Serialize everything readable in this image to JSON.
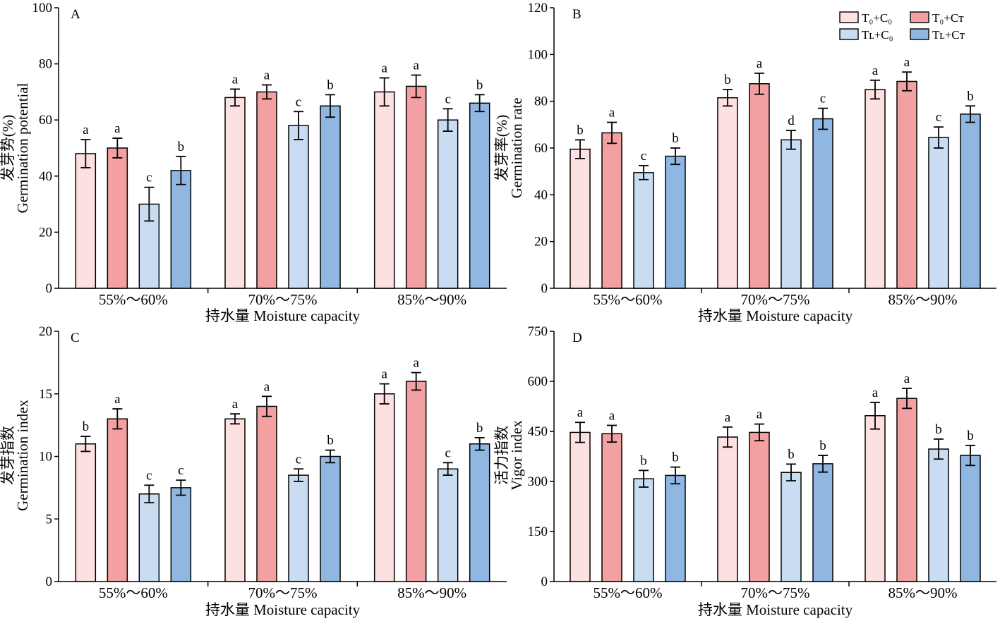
{
  "legend": [
    {
      "name": "T₀+C₀",
      "color": "#fde0e0"
    },
    {
      "name": "T₀+Cᴛ",
      "color": "#f2a0a2"
    },
    {
      "name": "Tʟ+C₀",
      "color": "#c9dcf2"
    },
    {
      "name": "Tʟ+Cᴛ",
      "color": "#8fb7e2"
    }
  ],
  "chart_data": [
    {
      "type": "bar",
      "panel": "A",
      "categories": [
        "55%～60%",
        "70%～75%",
        "85%～90%"
      ],
      "xlabel": "持水量 Moisture capacity",
      "ylabel_cn": "发芽势(%)",
      "ylabel_en": "Germination potential",
      "ylim": [
        0,
        100
      ],
      "yticks": [
        0,
        20,
        40,
        60,
        80,
        100
      ],
      "grid": false,
      "series": [
        {
          "name": "T₀+C₀",
          "values": [
            48,
            68,
            70
          ],
          "errors": [
            5,
            3,
            5
          ],
          "letters": [
            "a",
            "a",
            "a"
          ]
        },
        {
          "name": "T₀+Cᴛ",
          "values": [
            50,
            70,
            72
          ],
          "errors": [
            3.5,
            2.5,
            4
          ],
          "letters": [
            "a",
            "a",
            "a"
          ]
        },
        {
          "name": "Tʟ+C₀",
          "values": [
            30,
            58,
            60
          ],
          "errors": [
            6,
            5,
            4
          ],
          "letters": [
            "c",
            "c",
            "c"
          ]
        },
        {
          "name": "Tʟ+Cᴛ",
          "values": [
            42,
            65,
            66
          ],
          "errors": [
            5,
            4,
            3
          ],
          "letters": [
            "b",
            "b",
            "b"
          ]
        }
      ]
    },
    {
      "type": "bar",
      "panel": "B",
      "categories": [
        "55%～60%",
        "70%～75%",
        "85%～90%"
      ],
      "xlabel": "持水量 Moisture capacity",
      "ylabel_cn": "发芽率(%)",
      "ylabel_en": "Germination rate",
      "ylim": [
        0,
        120
      ],
      "yticks": [
        0,
        20,
        40,
        60,
        80,
        100,
        120
      ],
      "grid": false,
      "legend_position": "top-right",
      "series": [
        {
          "name": "T₀+C₀",
          "values": [
            59.5,
            81.5,
            85
          ],
          "errors": [
            4,
            3.5,
            4
          ],
          "letters": [
            "b",
            "b",
            "a"
          ]
        },
        {
          "name": "T₀+Cᴛ",
          "values": [
            66.5,
            87.5,
            88.5
          ],
          "errors": [
            4.5,
            4.5,
            4
          ],
          "letters": [
            "a",
            "a",
            "a"
          ]
        },
        {
          "name": "Tʟ+C₀",
          "values": [
            49.5,
            63.5,
            64.5
          ],
          "errors": [
            3,
            4,
            4.5
          ],
          "letters": [
            "c",
            "d",
            "c"
          ]
        },
        {
          "name": "Tʟ+Cᴛ",
          "values": [
            56.5,
            72.5,
            74.5
          ],
          "errors": [
            3.5,
            4.5,
            3.5
          ],
          "letters": [
            "b",
            "c",
            "b"
          ]
        }
      ]
    },
    {
      "type": "bar",
      "panel": "C",
      "categories": [
        "55%～60%",
        "70%～75%",
        "85%～90%"
      ],
      "xlabel": "持水量 Moisture capacity",
      "ylabel_cn": "发芽指数",
      "ylabel_en": "Germination index",
      "ylim": [
        0,
        20
      ],
      "yticks": [
        0,
        5,
        10,
        15,
        20
      ],
      "grid": false,
      "series": [
        {
          "name": "T₀+C₀",
          "values": [
            11,
            13,
            15
          ],
          "errors": [
            0.6,
            0.4,
            0.8
          ],
          "letters": [
            "b",
            "a",
            "a"
          ]
        },
        {
          "name": "T₀+Cᴛ",
          "values": [
            13,
            14,
            16
          ],
          "errors": [
            0.8,
            0.8,
            0.7
          ],
          "letters": [
            "a",
            "a",
            "a"
          ]
        },
        {
          "name": "Tʟ+C₀",
          "values": [
            7,
            8.5,
            9
          ],
          "errors": [
            0.7,
            0.5,
            0.5
          ],
          "letters": [
            "c",
            "c",
            "c"
          ]
        },
        {
          "name": "Tʟ+Cᴛ",
          "values": [
            7.5,
            10,
            11
          ],
          "errors": [
            0.6,
            0.5,
            0.5
          ],
          "letters": [
            "c",
            "b",
            "b"
          ]
        }
      ]
    },
    {
      "type": "bar",
      "panel": "D",
      "categories": [
        "55%～60%",
        "70%～75%",
        "85%～90%"
      ],
      "xlabel": "持水量 Moisture capacity",
      "ylabel_cn": "活力指数",
      "ylabel_en": "Vigor index",
      "ylim": [
        0,
        750
      ],
      "yticks": [
        0,
        150,
        300,
        450,
        600,
        750
      ],
      "grid": false,
      "series": [
        {
          "name": "T₀+C₀",
          "values": [
            447,
            433,
            497
          ],
          "errors": [
            30,
            30,
            40
          ],
          "letters": [
            "a",
            "a",
            "a"
          ]
        },
        {
          "name": "T₀+Cᴛ",
          "values": [
            443,
            447,
            549
          ],
          "errors": [
            25,
            25,
            30
          ],
          "letters": [
            "a",
            "a",
            "a"
          ]
        },
        {
          "name": "Tʟ+C₀",
          "values": [
            308,
            327,
            397
          ],
          "errors": [
            25,
            25,
            30
          ],
          "letters": [
            "b",
            "b",
            "b"
          ]
        },
        {
          "name": "Tʟ+Cᴛ",
          "values": [
            318,
            353,
            378
          ],
          "errors": [
            25,
            25,
            30
          ],
          "letters": [
            "b",
            "b",
            "b"
          ]
        }
      ]
    }
  ]
}
